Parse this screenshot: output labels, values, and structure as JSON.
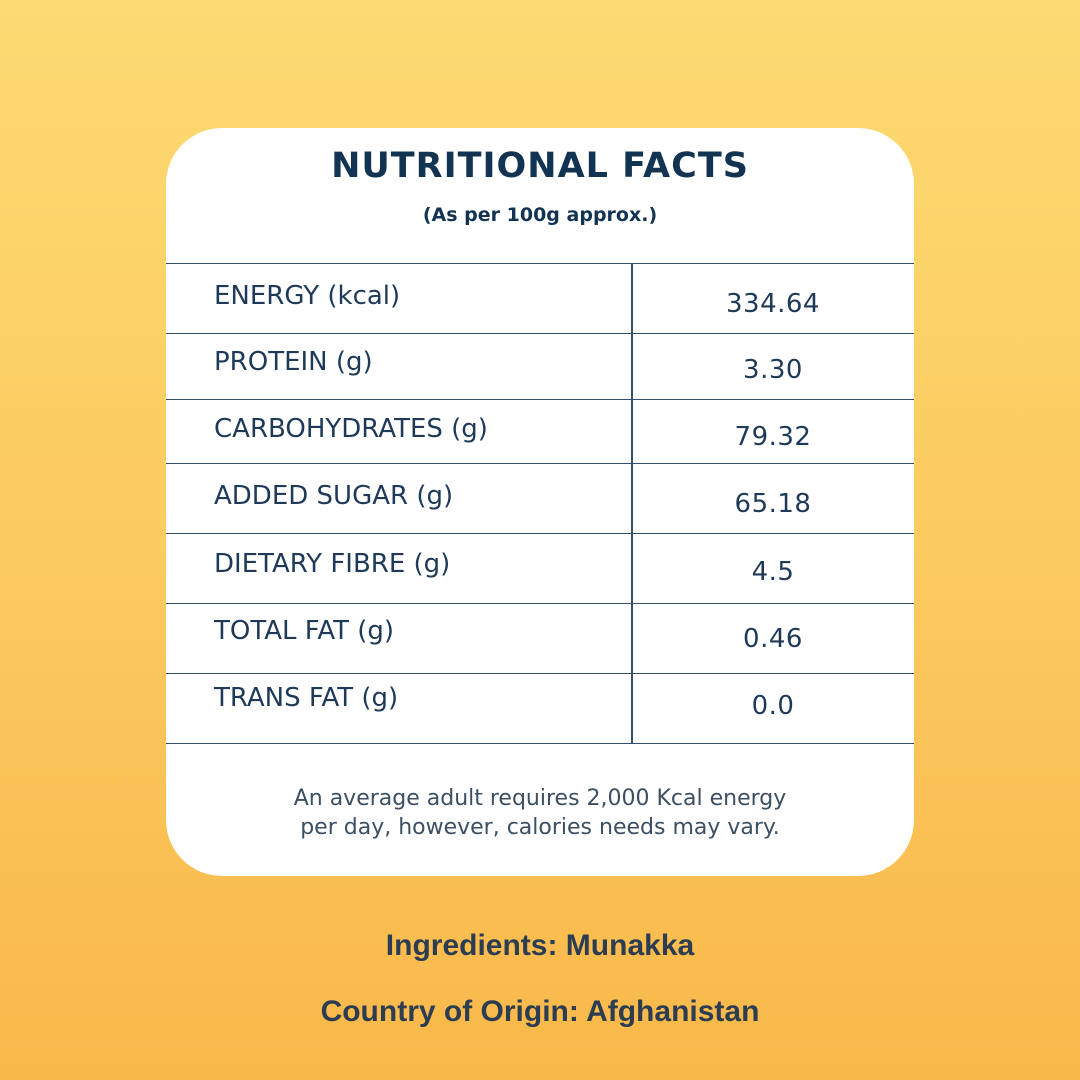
{
  "card": {
    "title": "NUTRITIONAL FACTS",
    "subtitle": "(As per 100g approx.)",
    "rows": [
      {
        "label": "ENERGY (kcal)",
        "value": "334.64"
      },
      {
        "label": "PROTEIN (g)",
        "value": "3.30"
      },
      {
        "label": "CARBOHYDRATES (g)",
        "value": "79.32"
      },
      {
        "label": "ADDED SUGAR (g)",
        "value": "65.18"
      },
      {
        "label": "DIETARY FIBRE (g)",
        "value": "4.5"
      },
      {
        "label": "TOTAL FAT (g)",
        "value": "0.46"
      },
      {
        "label": "TRANS FAT (g)",
        "value": "0.0"
      }
    ],
    "note_line1": "An average adult requires 2,000 Kcal energy",
    "note_line2": "per day, however, calories needs may vary."
  },
  "ingredients": "Ingredients: Munakka",
  "origin": "Country of Origin: Afghanistan",
  "colors": {
    "background_top": "#fcdb72",
    "background_bottom": "#f9b84a",
    "card": "#ffffff",
    "heading": "#123352",
    "table_line": "#35506d"
  }
}
